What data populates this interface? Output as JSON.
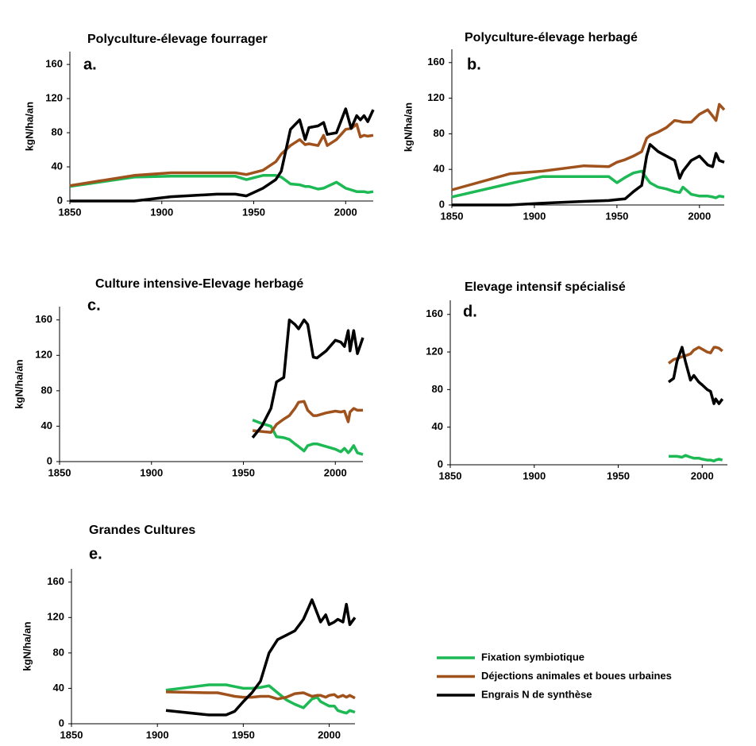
{
  "chart_data": [
    {
      "type": "line",
      "title": "Polyculture-élevage fourrager",
      "label": "a.",
      "y_label": "kgN/ha/an",
      "x": [
        1850,
        1885,
        1905,
        1930,
        1940,
        1946,
        1955,
        1962,
        1965,
        1970,
        1975,
        1978,
        1980,
        1985,
        1988,
        1990,
        1995,
        2000,
        2003,
        2006,
        2008,
        2010,
        2012,
        2015
      ],
      "series": [
        {
          "color": "#1db954",
          "values": [
            17,
            28,
            29,
            29,
            29,
            25,
            30,
            30,
            28,
            20,
            19,
            17,
            17,
            14,
            15,
            17,
            22,
            15,
            13,
            11,
            11,
            11,
            10,
            11
          ]
        },
        {
          "color": "#a0521d",
          "values": [
            18,
            30,
            33,
            33,
            33,
            31,
            36,
            46,
            55,
            65,
            72,
            66,
            67,
            65,
            77,
            65,
            72,
            84,
            85,
            90,
            75,
            77,
            76,
            77
          ]
        },
        {
          "color": "#000000",
          "values": [
            0,
            0,
            5,
            8,
            8,
            6,
            15,
            25,
            35,
            84,
            95,
            72,
            86,
            88,
            92,
            78,
            80,
            108,
            85,
            100,
            95,
            100,
            93,
            107
          ]
        }
      ],
      "xlim": [
        1850,
        2015
      ],
      "ylim": [
        0,
        175
      ],
      "xticks": [
        1850,
        1900,
        1950,
        2000
      ],
      "yticks": [
        0,
        40,
        80,
        120,
        160
      ]
    },
    {
      "type": "line",
      "title": "Polyculture-élevage herbagé",
      "label": "b.",
      "y_label": "kgN/ha/an",
      "x": [
        1850,
        1885,
        1905,
        1930,
        1945,
        1950,
        1955,
        1960,
        1965,
        1968,
        1970,
        1975,
        1980,
        1985,
        1988,
        1990,
        1995,
        2000,
        2005,
        2008,
        2010,
        2012,
        2015
      ],
      "series": [
        {
          "color": "#1db954",
          "values": [
            9,
            24,
            32,
            32,
            32,
            25,
            31,
            36,
            38,
            30,
            25,
            20,
            18,
            15,
            14,
            20,
            12,
            10,
            10,
            9,
            8,
            10,
            9
          ]
        },
        {
          "color": "#a0521d",
          "values": [
            17,
            35,
            38,
            44,
            43,
            48,
            51,
            55,
            60,
            75,
            78,
            82,
            87,
            95,
            94,
            93,
            93,
            102,
            107,
            100,
            95,
            113,
            107
          ]
        },
        {
          "color": "#000000",
          "values": [
            0,
            0,
            2,
            4,
            5,
            6,
            7,
            15,
            22,
            55,
            68,
            60,
            55,
            50,
            30,
            38,
            50,
            55,
            45,
            43,
            58,
            50,
            48
          ]
        }
      ],
      "xlim": [
        1850,
        2015
      ],
      "ylim": [
        0,
        175
      ],
      "xticks": [
        1850,
        1900,
        1950,
        2000
      ],
      "yticks": [
        0,
        40,
        80,
        120,
        160
      ]
    },
    {
      "type": "line",
      "title": "Culture intensive-Elevage herbagé",
      "label": "c.",
      "y_label": "kgN/ha/an",
      "x": [
        1955,
        1960,
        1965,
        1968,
        1972,
        1975,
        1978,
        1980,
        1983,
        1985,
        1988,
        1990,
        1995,
        2000,
        2003,
        2005,
        2007,
        2008,
        2010,
        2012,
        2015
      ],
      "series": [
        {
          "color": "#1db954",
          "values": [
            47,
            43,
            40,
            28,
            27,
            25,
            20,
            17,
            12,
            18,
            20,
            20,
            17,
            14,
            11,
            15,
            10,
            12,
            18,
            10,
            8
          ]
        },
        {
          "color": "#a0521d",
          "values": [
            35,
            34,
            33,
            42,
            48,
            52,
            60,
            67,
            68,
            58,
            52,
            52,
            55,
            57,
            56,
            57,
            45,
            56,
            60,
            58,
            58
          ]
        },
        {
          "color": "#000000",
          "values": [
            27,
            40,
            60,
            90,
            95,
            160,
            155,
            150,
            160,
            155,
            118,
            117,
            125,
            137,
            135,
            130,
            148,
            125,
            148,
            122,
            140
          ]
        }
      ],
      "xlim": [
        1850,
        2015
      ],
      "ylim": [
        0,
        175
      ],
      "xticks": [
        1850,
        1900,
        1950,
        2000
      ],
      "yticks": [
        0,
        40,
        80,
        120,
        160
      ]
    },
    {
      "type": "line",
      "title": "Elevage intensif spécialisé",
      "label": "d.",
      "x": [
        1980,
        1983,
        1985,
        1988,
        1990,
        1993,
        1995,
        1998,
        2000,
        2003,
        2005,
        2007,
        2008,
        2010,
        2012
      ],
      "series": [
        {
          "color": "#1db954",
          "values": [
            9,
            9,
            9,
            8,
            10,
            8,
            7,
            7,
            6,
            5,
            5,
            4,
            5,
            6,
            5
          ]
        },
        {
          "color": "#a0521d",
          "values": [
            108,
            112,
            113,
            115,
            116,
            118,
            122,
            125,
            123,
            120,
            119,
            125,
            125,
            124,
            121
          ]
        },
        {
          "color": "#000000",
          "values": [
            88,
            92,
            110,
            125,
            110,
            90,
            95,
            88,
            85,
            80,
            78,
            65,
            70,
            65,
            70
          ]
        }
      ],
      "xlim": [
        1850,
        2015
      ],
      "ylim": [
        0,
        175
      ],
      "xticks": [
        1850,
        1900,
        1950,
        2000
      ],
      "yticks": [
        0,
        40,
        80,
        120,
        160
      ]
    },
    {
      "type": "line",
      "title": "Grandes Cultures",
      "label": "e.",
      "y_label": "kgN/ha/an",
      "x": [
        1905,
        1930,
        1935,
        1940,
        1945,
        1950,
        1955,
        1960,
        1965,
        1970,
        1975,
        1980,
        1985,
        1990,
        1993,
        1995,
        1998,
        2000,
        2003,
        2005,
        2008,
        2010,
        2012,
        2015
      ],
      "series": [
        {
          "color": "#1db954",
          "values": [
            38,
            44,
            44,
            44,
            42,
            40,
            40,
            41,
            43,
            35,
            27,
            22,
            18,
            28,
            30,
            25,
            22,
            20,
            20,
            15,
            13,
            12,
            15,
            13
          ]
        },
        {
          "color": "#a0521d",
          "values": [
            36,
            35,
            35,
            33,
            31,
            30,
            30,
            31,
            31,
            28,
            30,
            34,
            35,
            31,
            32,
            32,
            30,
            32,
            33,
            30,
            32,
            30,
            32,
            29
          ]
        },
        {
          "color": "#000000",
          "values": [
            15,
            10,
            10,
            10,
            14,
            25,
            35,
            48,
            80,
            95,
            100,
            105,
            118,
            140,
            125,
            115,
            123,
            112,
            115,
            118,
            115,
            135,
            112,
            120
          ]
        }
      ],
      "xlim": [
        1850,
        2015
      ],
      "ylim": [
        0,
        175
      ],
      "xticks": [
        1850,
        1900,
        1950,
        2000
      ],
      "yticks": [
        0,
        40,
        80,
        120,
        160
      ]
    }
  ],
  "legend": {
    "entries": [
      {
        "name": "Fixation symbiotique",
        "color": "#1db954"
      },
      {
        "name": "Déjections animales et boues urbaines",
        "color": "#a0521d"
      },
      {
        "name": "Engrais N de synthèse",
        "color": "#000000"
      }
    ]
  }
}
